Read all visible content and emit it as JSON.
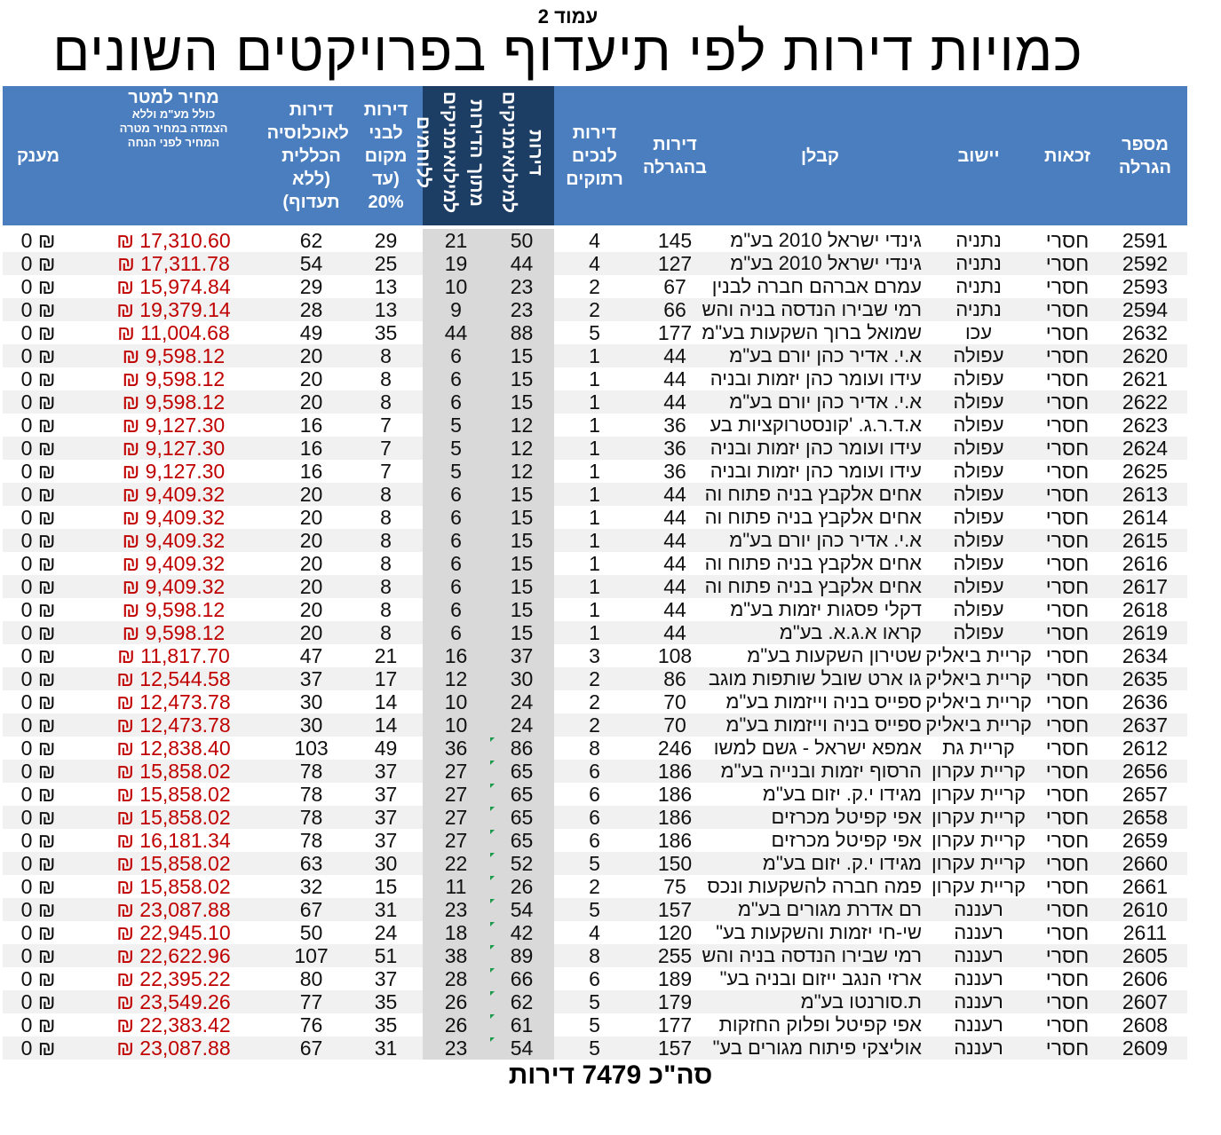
{
  "page_label": "עמוד 2",
  "title": "כמויות דירות לפי תיעדוף בפרויקטים השונים",
  "headers": {
    "lottery_number": "מספר\nהגרלה",
    "rights": "זכאות",
    "settlement": "יישוב",
    "contractor": "קבלן",
    "apartments_in_lottery": "דירות\nבהגרלה",
    "disabled": "דירות\nלנכים\nרתוקים",
    "reservists": "דירות\nלמילואימניקים",
    "reservist_fighters": "מתוך הדירות\nלמילואימניקים\nללוחמים",
    "locals": "דירות\nלבני\nמקום\n(עד\n20%",
    "general": "דירות\nלאוכלוסיה\nהכללית\n(ללא\nתעדוף)",
    "price_main": "מחיר למטר",
    "price_sub": "כולל מע\"מ וללא\nהצמדה במחיר מטרה\nהמחיר לפני הנחה",
    "grant": "מענק"
  },
  "rows": [
    {
      "lottery": "2591",
      "rights": "חסרי",
      "city": "נתניה",
      "contractor": "גינדי ישראל 2010 בע\"מ",
      "total": "145",
      "disabled": "4",
      "reservists": "50",
      "fighters": "21",
      "locals": "29",
      "general": "62",
      "price": "₪ 17,310.60",
      "grant": "₪ 0",
      "mark": false
    },
    {
      "lottery": "2592",
      "rights": "חסרי",
      "city": "נתניה",
      "contractor": "גינדי ישראל 2010 בע\"מ",
      "total": "127",
      "disabled": "4",
      "reservists": "44",
      "fighters": "19",
      "locals": "25",
      "general": "54",
      "price": "₪ 17,311.78",
      "grant": "₪ 0",
      "mark": false
    },
    {
      "lottery": "2593",
      "rights": "חסרי",
      "city": "נתניה",
      "contractor": "עמרם אברהם חברה לבנין",
      "total": "67",
      "disabled": "2",
      "reservists": "23",
      "fighters": "10",
      "locals": "13",
      "general": "29",
      "price": "₪ 15,974.84",
      "grant": "₪ 0",
      "mark": false
    },
    {
      "lottery": "2594",
      "rights": "חסרי",
      "city": "נתניה",
      "contractor": "רמי שבירו הנדסה בניה והש",
      "total": "66",
      "disabled": "2",
      "reservists": "23",
      "fighters": "9",
      "locals": "13",
      "general": "28",
      "price": "₪ 19,379.14",
      "grant": "₪ 0",
      "mark": false
    },
    {
      "lottery": "2632",
      "rights": "חסרי",
      "city": "עכו",
      "contractor": "שמואל ברוך השקעות בע\"מ",
      "total": "177",
      "disabled": "5",
      "reservists": "88",
      "fighters": "44",
      "locals": "35",
      "general": "49",
      "price": "₪ 11,004.68",
      "grant": "₪ 0",
      "mark": false
    },
    {
      "lottery": "2620",
      "rights": "חסרי",
      "city": "עפולה",
      "contractor": "א.י. אדיר כהן יורם בע\"מ",
      "total": "44",
      "disabled": "1",
      "reservists": "15",
      "fighters": "6",
      "locals": "8",
      "general": "20",
      "price": "₪ 9,598.12",
      "grant": "₪ 0",
      "mark": false
    },
    {
      "lottery": "2621",
      "rights": "חסרי",
      "city": "עפולה",
      "contractor": "עידו ועומר כהן יזמות ובניה",
      "total": "44",
      "disabled": "1",
      "reservists": "15",
      "fighters": "6",
      "locals": "8",
      "general": "20",
      "price": "₪ 9,598.12",
      "grant": "₪ 0",
      "mark": false
    },
    {
      "lottery": "2622",
      "rights": "חסרי",
      "city": "עפולה",
      "contractor": "א.י. אדיר כהן יורם בע\"מ",
      "total": "44",
      "disabled": "1",
      "reservists": "15",
      "fighters": "6",
      "locals": "8",
      "general": "20",
      "price": "₪ 9,598.12",
      "grant": "₪ 0",
      "mark": false
    },
    {
      "lottery": "2623",
      "rights": "חסרי",
      "city": "עפולה",
      "contractor": "א.ד.ר.ג. 'קונסטרוקציות בע",
      "total": "36",
      "disabled": "1",
      "reservists": "12",
      "fighters": "5",
      "locals": "7",
      "general": "16",
      "price": "₪ 9,127.30",
      "grant": "₪ 0",
      "mark": false
    },
    {
      "lottery": "2624",
      "rights": "חסרי",
      "city": "עפולה",
      "contractor": "עידו ועומר כהן יזמות ובניה",
      "total": "36",
      "disabled": "1",
      "reservists": "12",
      "fighters": "5",
      "locals": "7",
      "general": "16",
      "price": "₪ 9,127.30",
      "grant": "₪ 0",
      "mark": false
    },
    {
      "lottery": "2625",
      "rights": "חסרי",
      "city": "עפולה",
      "contractor": "עידו ועומר כהן יזמות ובניה",
      "total": "36",
      "disabled": "1",
      "reservists": "12",
      "fighters": "5",
      "locals": "7",
      "general": "16",
      "price": "₪ 9,127.30",
      "grant": "₪ 0",
      "mark": false
    },
    {
      "lottery": "2613",
      "rights": "חסרי",
      "city": "עפולה",
      "contractor": "אחים אלקבץ בניה פתוח וה",
      "total": "44",
      "disabled": "1",
      "reservists": "15",
      "fighters": "6",
      "locals": "8",
      "general": "20",
      "price": "₪ 9,409.32",
      "grant": "₪ 0",
      "mark": false
    },
    {
      "lottery": "2614",
      "rights": "חסרי",
      "city": "עפולה",
      "contractor": "אחים אלקבץ בניה פתוח וה",
      "total": "44",
      "disabled": "1",
      "reservists": "15",
      "fighters": "6",
      "locals": "8",
      "general": "20",
      "price": "₪ 9,409.32",
      "grant": "₪ 0",
      "mark": false
    },
    {
      "lottery": "2615",
      "rights": "חסרי",
      "city": "עפולה",
      "contractor": "א.י. אדיר כהן יורם בע\"מ",
      "total": "44",
      "disabled": "1",
      "reservists": "15",
      "fighters": "6",
      "locals": "8",
      "general": "20",
      "price": "₪ 9,409.32",
      "grant": "₪ 0",
      "mark": false
    },
    {
      "lottery": "2616",
      "rights": "חסרי",
      "city": "עפולה",
      "contractor": "אחים אלקבץ בניה פתוח וה",
      "total": "44",
      "disabled": "1",
      "reservists": "15",
      "fighters": "6",
      "locals": "8",
      "general": "20",
      "price": "₪ 9,409.32",
      "grant": "₪ 0",
      "mark": false
    },
    {
      "lottery": "2617",
      "rights": "חסרי",
      "city": "עפולה",
      "contractor": "אחים אלקבץ בניה פתוח וה",
      "total": "44",
      "disabled": "1",
      "reservists": "15",
      "fighters": "6",
      "locals": "8",
      "general": "20",
      "price": "₪ 9,409.32",
      "grant": "₪ 0",
      "mark": false
    },
    {
      "lottery": "2618",
      "rights": "חסרי",
      "city": "עפולה",
      "contractor": "דקלי פסגות יזמות בע\"מ",
      "total": "44",
      "disabled": "1",
      "reservists": "15",
      "fighters": "6",
      "locals": "8",
      "general": "20",
      "price": "₪ 9,598.12",
      "grant": "₪ 0",
      "mark": false
    },
    {
      "lottery": "2619",
      "rights": "חסרי",
      "city": "עפולה",
      "contractor": "קראו א.ג.א. בע\"מ",
      "total": "44",
      "disabled": "1",
      "reservists": "15",
      "fighters": "6",
      "locals": "8",
      "general": "20",
      "price": "₪ 9,598.12",
      "grant": "₪ 0",
      "mark": false
    },
    {
      "lottery": "2634",
      "rights": "חסרי",
      "city": "קריית ביאליק",
      "contractor": "שטירון השקעות בע\"מ",
      "total": "108",
      "disabled": "3",
      "reservists": "37",
      "fighters": "16",
      "locals": "21",
      "general": "47",
      "price": "₪ 11,817.70",
      "grant": "₪ 0",
      "mark": false
    },
    {
      "lottery": "2635",
      "rights": "חסרי",
      "city": "קריית ביאליק",
      "contractor": "גו ארט שובל שותפות מוגב",
      "total": "86",
      "disabled": "2",
      "reservists": "30",
      "fighters": "12",
      "locals": "17",
      "general": "37",
      "price": "₪ 12,544.58",
      "grant": "₪ 0",
      "mark": false
    },
    {
      "lottery": "2636",
      "rights": "חסרי",
      "city": "קריית ביאליק",
      "contractor": "ספייס בניה וייזמות בע\"מ",
      "total": "70",
      "disabled": "2",
      "reservists": "24",
      "fighters": "10",
      "locals": "14",
      "general": "30",
      "price": "₪ 12,473.78",
      "grant": "₪ 0",
      "mark": false
    },
    {
      "lottery": "2637",
      "rights": "חסרי",
      "city": "קריית ביאליק",
      "contractor": "ספייס בניה וייזמות בע\"מ",
      "total": "70",
      "disabled": "2",
      "reservists": "24",
      "fighters": "10",
      "locals": "14",
      "general": "30",
      "price": "₪ 12,473.78",
      "grant": "₪ 0",
      "mark": false
    },
    {
      "lottery": "2612",
      "rights": "חסרי",
      "city": "קריית גת",
      "contractor": "אמפא ישראל - גשם למשו",
      "total": "246",
      "disabled": "8",
      "reservists": "86",
      "fighters": "36",
      "locals": "49",
      "general": "103",
      "price": "₪ 12,838.40",
      "grant": "₪ 0",
      "mark": true
    },
    {
      "lottery": "2656",
      "rights": "חסרי",
      "city": "קריית עקרון",
      "contractor": "הרסוף יזמות ובנייה בע\"מ",
      "total": "186",
      "disabled": "6",
      "reservists": "65",
      "fighters": "27",
      "locals": "37",
      "general": "78",
      "price": "₪ 15,858.02",
      "grant": "₪ 0",
      "mark": true
    },
    {
      "lottery": "2657",
      "rights": "חסרי",
      "city": "קריית עקרון",
      "contractor": "מגידו י.ק. יזום בע\"מ",
      "total": "186",
      "disabled": "6",
      "reservists": "65",
      "fighters": "27",
      "locals": "37",
      "general": "78",
      "price": "₪ 15,858.02",
      "grant": "₪ 0",
      "mark": true
    },
    {
      "lottery": "2658",
      "rights": "חסרי",
      "city": "קריית עקרון",
      "contractor": "אפי קפיטל מכרזים",
      "total": "186",
      "disabled": "6",
      "reservists": "65",
      "fighters": "27",
      "locals": "37",
      "general": "78",
      "price": "₪ 15,858.02",
      "grant": "₪ 0",
      "mark": true
    },
    {
      "lottery": "2659",
      "rights": "חסרי",
      "city": "קריית עקרון",
      "contractor": "אפי קפיטל מכרזים",
      "total": "186",
      "disabled": "6",
      "reservists": "65",
      "fighters": "27",
      "locals": "37",
      "general": "78",
      "price": "₪ 16,181.34",
      "grant": "₪ 0",
      "mark": true
    },
    {
      "lottery": "2660",
      "rights": "חסרי",
      "city": "קריית עקרון",
      "contractor": "מגידו י.ק. יזום בע\"מ",
      "total": "150",
      "disabled": "5",
      "reservists": "52",
      "fighters": "22",
      "locals": "30",
      "general": "63",
      "price": "₪ 15,858.02",
      "grant": "₪ 0",
      "mark": true
    },
    {
      "lottery": "2661",
      "rights": "חסרי",
      "city": "קריית עקרון",
      "contractor": "פמה חברה להשקעות ונכס",
      "total": "75",
      "disabled": "2",
      "reservists": "26",
      "fighters": "11",
      "locals": "15",
      "general": "32",
      "price": "₪ 15,858.02",
      "grant": "₪ 0",
      "mark": true
    },
    {
      "lottery": "2610",
      "rights": "חסרי",
      "city": "רעננה",
      "contractor": "רם אדרת מגורים בע\"מ",
      "total": "157",
      "disabled": "5",
      "reservists": "54",
      "fighters": "23",
      "locals": "31",
      "general": "67",
      "price": "₪ 23,087.88",
      "grant": "₪ 0",
      "mark": true
    },
    {
      "lottery": "2611",
      "rights": "חסרי",
      "city": "רעננה",
      "contractor": "שי-חי יזמות והשקעות בע\"",
      "total": "120",
      "disabled": "4",
      "reservists": "42",
      "fighters": "18",
      "locals": "24",
      "general": "50",
      "price": "₪ 22,945.10",
      "grant": "₪ 0",
      "mark": true
    },
    {
      "lottery": "2605",
      "rights": "חסרי",
      "city": "רעננה",
      "contractor": "רמי שבירו הנדסה בניה והש",
      "total": "255",
      "disabled": "8",
      "reservists": "89",
      "fighters": "38",
      "locals": "51",
      "general": "107",
      "price": "₪ 22,622.96",
      "grant": "₪ 0",
      "mark": true
    },
    {
      "lottery": "2606",
      "rights": "חסרי",
      "city": "רעננה",
      "contractor": "ארזי הנגב ייזום ובניה בע\"",
      "total": "189",
      "disabled": "6",
      "reservists": "66",
      "fighters": "28",
      "locals": "37",
      "general": "80",
      "price": "₪ 22,395.22",
      "grant": "₪ 0",
      "mark": true
    },
    {
      "lottery": "2607",
      "rights": "חסרי",
      "city": "רעננה",
      "contractor": "ת.סורנטו בע\"מ",
      "total": "179",
      "disabled": "5",
      "reservists": "62",
      "fighters": "26",
      "locals": "35",
      "general": "77",
      "price": "₪ 23,549.26",
      "grant": "₪ 0",
      "mark": true
    },
    {
      "lottery": "2608",
      "rights": "חסרי",
      "city": "רעננה",
      "contractor": "אפי קפיטל ופלוק החזקות",
      "total": "177",
      "disabled": "5",
      "reservists": "61",
      "fighters": "26",
      "locals": "35",
      "general": "76",
      "price": "₪ 22,383.42",
      "grant": "₪ 0",
      "mark": true
    },
    {
      "lottery": "2609",
      "rights": "חסרי",
      "city": "רעננה",
      "contractor": "אוליצקי פיתוח מגורים בע\"",
      "total": "157",
      "disabled": "5",
      "reservists": "54",
      "fighters": "23",
      "locals": "31",
      "general": "67",
      "price": "₪ 23,087.88",
      "grant": "₪ 0",
      "mark": true
    }
  ],
  "total_text": "סה\"כ 7479 דירות"
}
